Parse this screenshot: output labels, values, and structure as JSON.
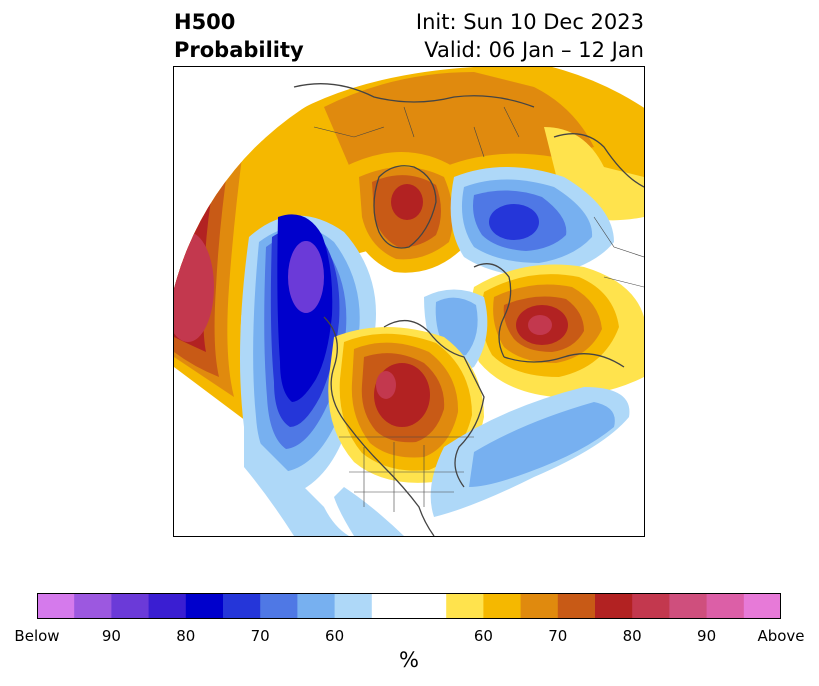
{
  "title": {
    "left_line1": "H500",
    "left_line2": "Probability",
    "right_line1": "Init: Sun 10 Dec 2023",
    "right_line2": "Valid: 06 Jan – 12 Jan"
  },
  "colorbar": {
    "unit": "%",
    "colors": [
      "#d57aec",
      "#9c58e0",
      "#6b3ad8",
      "#3a1ed2",
      "#0000cc",
      "#2536d9",
      "#4f78e5",
      "#77b0f0",
      "#aed8f8",
      "#ffffff",
      "#ffffff",
      "#ffe34d",
      "#f5b800",
      "#e08a0e",
      "#c85a16",
      "#b22222",
      "#c3384e",
      "#cf4f7d",
      "#dc5fa7",
      "#e77ad8"
    ],
    "tick_labels": [
      "Below",
      "90",
      "80",
      "70",
      "60",
      "60",
      "70",
      "80",
      "90",
      "Above"
    ]
  },
  "map": {
    "projection": "north-polar-stereographic",
    "features": [
      "continents",
      "country-borders",
      "us-state-borders"
    ]
  }
}
